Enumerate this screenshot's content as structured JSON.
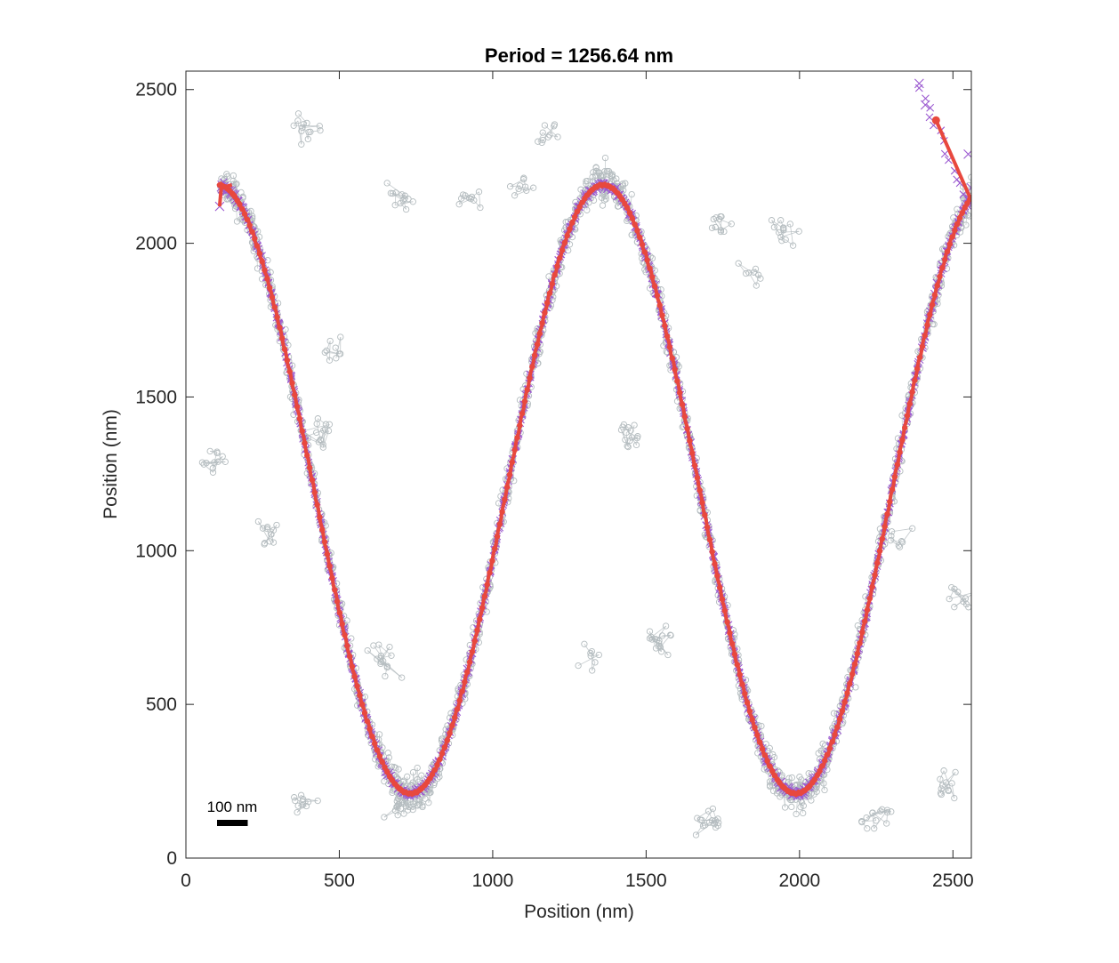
{
  "chart_data": {
    "type": "scatter",
    "title": "Period = 1256.64 nm",
    "xlabel": "Position (nm)",
    "ylabel": "Position (nm)",
    "xlim": [
      0,
      2560
    ],
    "ylim": [
      0,
      2560
    ],
    "xticks": [
      0,
      500,
      1000,
      1500,
      2000,
      2500
    ],
    "yticks": [
      0,
      500,
      1000,
      1500,
      2000,
      2500
    ],
    "grid": false,
    "colors": {
      "raw": "#b4bcbf",
      "localizations": "#9b59d0",
      "fit": "#e8483e",
      "axis": "#262626"
    },
    "scale_bar": {
      "label": "100 nm",
      "length": 100
    },
    "curve": {
      "description_free": true,
      "x_start": 110,
      "x_end": 2555,
      "period": 1256.64,
      "center": 1200,
      "amplitude": 990,
      "x_of_max": 1360
    },
    "series": [
      {
        "kind": "raw",
        "points": [
          [
            110,
            2140
          ],
          [
            180,
            2080
          ],
          [
            260,
            1960
          ],
          [
            340,
            1720
          ],
          [
            420,
            1380
          ],
          [
            500,
            1010
          ],
          [
            580,
            690
          ],
          [
            660,
            380
          ],
          [
            720,
            210
          ],
          [
            800,
            300
          ],
          [
            880,
            600
          ],
          [
            960,
            900
          ],
          [
            1040,
            1260
          ],
          [
            1120,
            1600
          ],
          [
            1200,
            1900
          ],
          [
            1280,
            2120
          ],
          [
            1360,
            2190
          ],
          [
            1440,
            2070
          ],
          [
            1520,
            1780
          ],
          [
            1600,
            1440
          ],
          [
            1680,
            1120
          ],
          [
            1760,
            780
          ],
          [
            1840,
            480
          ],
          [
            1920,
            260
          ],
          [
            1990,
            210
          ],
          [
            2070,
            340
          ],
          [
            2150,
            600
          ],
          [
            2230,
            900
          ],
          [
            2310,
            1250
          ],
          [
            2390,
            1580
          ],
          [
            2470,
            1880
          ],
          [
            2550,
            2150
          ]
        ]
      },
      {
        "kind": "outlier-clusters",
        "points": [
          [
            100,
            1300
          ],
          [
            260,
            1050
          ],
          [
            430,
            1380
          ],
          [
            400,
            2380
          ],
          [
            700,
            2150
          ],
          [
            930,
            2150
          ],
          [
            1100,
            2180
          ],
          [
            1450,
            1380
          ],
          [
            1750,
            2060
          ],
          [
            1950,
            2040
          ],
          [
            1320,
            650
          ],
          [
            650,
            650
          ],
          [
            1550,
            700
          ],
          [
            380,
            170
          ],
          [
            700,
            170
          ],
          [
            1700,
            110
          ],
          [
            2260,
            150
          ],
          [
            2480,
            250
          ],
          [
            2520,
            840
          ],
          [
            2340,
            1050
          ],
          [
            1840,
            1920
          ],
          [
            1180,
            2350
          ],
          [
            480,
            1660
          ]
        ]
      },
      {
        "kind": "localizations",
        "points": [
          [
            110,
            2120
          ],
          [
            2390,
            2520
          ],
          [
            2410,
            2450
          ],
          [
            2550,
            2290
          ],
          [
            2560,
            2180
          ]
        ]
      }
    ]
  }
}
